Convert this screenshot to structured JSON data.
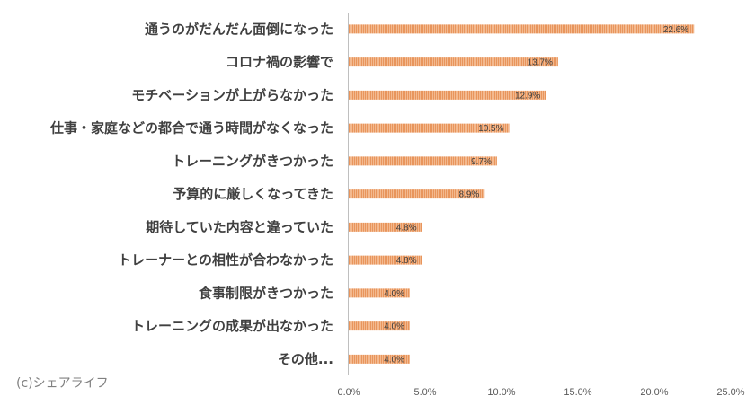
{
  "chart_data": {
    "type": "bar",
    "orientation": "horizontal",
    "categories": [
      "通うのがだんだん面倒になった",
      "コロナ禍の影響で",
      "モチベーションが上がらなかった",
      "仕事・家庭などの都合で通う時間がなくなった",
      "トレーニングがきつかった",
      "予算的に厳しくなってきた",
      "期待していた内容と違っていた",
      "トレーナーとの相性が合わなかった",
      "食事制限がきつかった",
      "トレーニングの成果が出なかった",
      "その他..."
    ],
    "values": [
      22.6,
      13.7,
      12.9,
      10.5,
      9.7,
      8.9,
      4.8,
      4.8,
      4.0,
      4.0,
      4.0
    ],
    "value_labels": [
      "22.6%",
      "13.7%",
      "12.9%",
      "10.5%",
      "9.7%",
      "8.9%",
      "4.8%",
      "4.8%",
      "4.0%",
      "4.0%",
      "4.0%"
    ],
    "xlim": [
      0,
      25
    ],
    "xticks": [
      "0.0%",
      "5.0%",
      "10.0%",
      "15.0%",
      "20.0%",
      "25.0%"
    ],
    "grid": false,
    "bar_color": "#f0a06a"
  },
  "credit": "(c)シェアライフ"
}
